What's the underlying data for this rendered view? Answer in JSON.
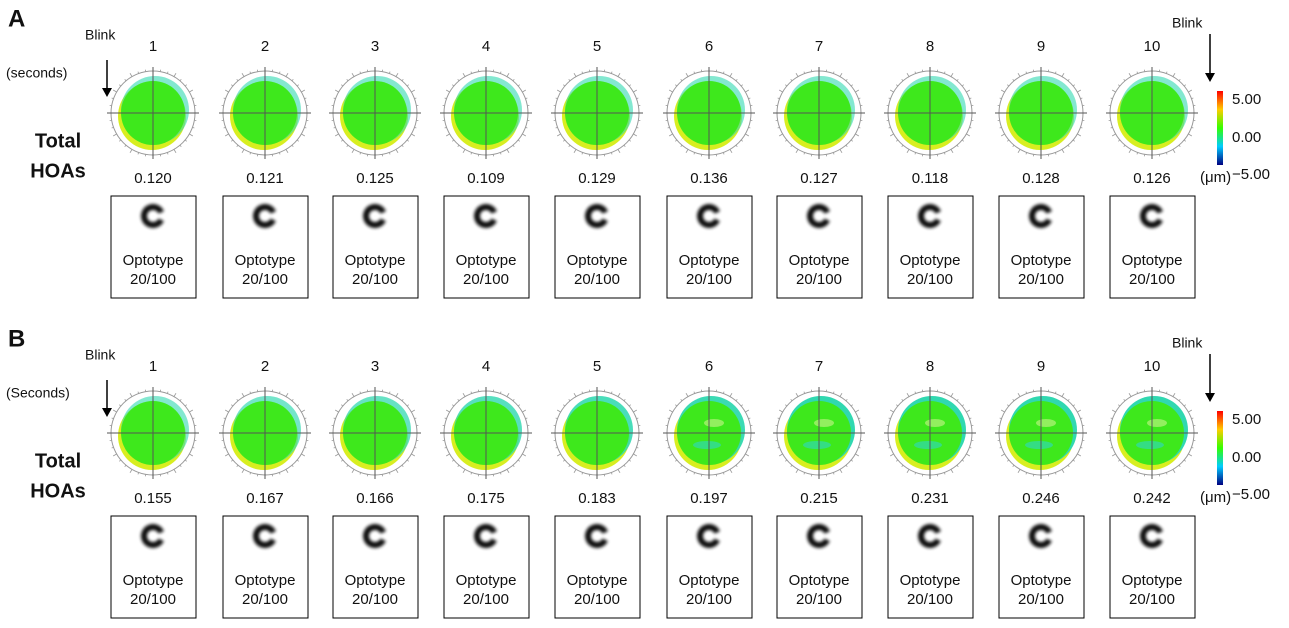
{
  "panels": [
    {
      "label": "A",
      "blink_left": "Blink",
      "seconds": "(seconds)",
      "row_label": [
        "Total",
        "HOAs"
      ],
      "times": [
        "1",
        "2",
        "3",
        "4",
        "5",
        "6",
        "7",
        "8",
        "9",
        "10"
      ],
      "values": [
        "0.120",
        "0.121",
        "0.125",
        "0.109",
        "0.129",
        "0.136",
        "0.127",
        "0.118",
        "0.128",
        "0.126"
      ],
      "unit": "(μm)",
      "blink_right": "Blink",
      "colorbar": [
        "5.00",
        "0.00",
        "−5.00"
      ],
      "optotypes": [
        {
          "line1": "Optotype",
          "line2": "20/100"
        },
        {
          "line1": "Optotype",
          "line2": "20/100"
        },
        {
          "line1": "Optotype",
          "line2": "20/100"
        },
        {
          "line1": "Optotype",
          "line2": "20/100"
        },
        {
          "line1": "Optotype",
          "line2": "20/100"
        },
        {
          "line1": "Optotype",
          "line2": "20/100"
        },
        {
          "line1": "Optotype",
          "line2": "20/100"
        },
        {
          "line1": "Optotype",
          "line2": "20/100"
        },
        {
          "line1": "Optotype",
          "line2": "20/100"
        },
        {
          "line1": "Optotype",
          "line2": "20/100"
        }
      ]
    },
    {
      "label": "B",
      "blink_left": "Blink",
      "seconds": "(Seconds)",
      "row_label": [
        "Total",
        "HOAs"
      ],
      "times": [
        "1",
        "2",
        "3",
        "4",
        "5",
        "6",
        "7",
        "8",
        "9",
        "10"
      ],
      "values": [
        "0.155",
        "0.167",
        "0.166",
        "0.175",
        "0.183",
        "0.197",
        "0.215",
        "0.231",
        "0.246",
        "0.242"
      ],
      "unit": "(μm)",
      "blink_right": "Blink",
      "colorbar": [
        "5.00",
        "0.00",
        "−5.00"
      ],
      "optotypes": [
        {
          "line1": "Optotype",
          "line2": "20/100"
        },
        {
          "line1": "Optotype",
          "line2": "20/100"
        },
        {
          "line1": "Optotype",
          "line2": "20/100"
        },
        {
          "line1": "Optotype",
          "line2": "20/100"
        },
        {
          "line1": "Optotype",
          "line2": "20/100"
        },
        {
          "line1": "Optotype",
          "line2": "20/100"
        },
        {
          "line1": "Optotype",
          "line2": "20/100"
        },
        {
          "line1": "Optotype",
          "line2": "20/100"
        },
        {
          "line1": "Optotype",
          "line2": "20/100"
        },
        {
          "line1": "Optotype",
          "line2": "20/100"
        }
      ]
    }
  ]
}
